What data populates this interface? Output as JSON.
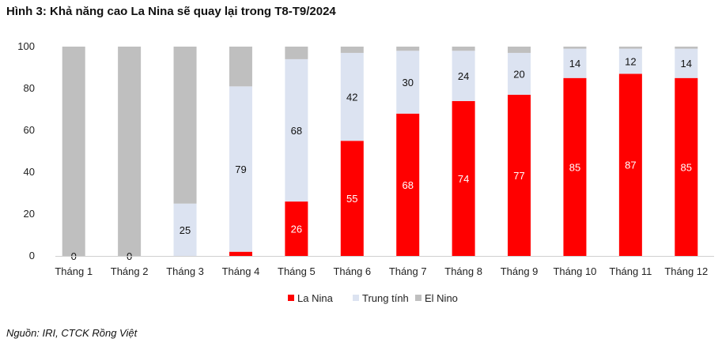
{
  "figure_title": "Hình 3: Khả năng cao La Nina sẽ quay lại trong T8-T9/2024",
  "source_note": "Nguồn: IRI, CTCK Rồng Việt",
  "chart_data": {
    "type": "bar",
    "stacked": true,
    "categories": [
      "Tháng 1",
      "Tháng 2",
      "Tháng 3",
      "Tháng 4",
      "Tháng 5",
      "Tháng 6",
      "Tháng 7",
      "Tháng 8",
      "Tháng 9",
      "Tháng 10",
      "Tháng 11",
      "Tháng 12"
    ],
    "series": [
      {
        "name": "La Nina",
        "color": "#ff0000",
        "values": [
          0,
          0,
          0,
          2,
          26,
          55,
          68,
          74,
          77,
          85,
          87,
          85
        ]
      },
      {
        "name": "Trung tính",
        "color": "#dce3f1",
        "values": [
          0,
          0,
          25,
          79,
          68,
          42,
          30,
          24,
          20,
          14,
          12,
          14
        ]
      },
      {
        "name": "El Nino",
        "color": "#bfbfbf",
        "values": [
          100,
          100,
          75,
          19,
          6,
          3,
          2,
          2,
          3,
          1,
          1,
          1
        ]
      }
    ],
    "data_labels": [
      {
        "text": "0",
        "series": "Trung tính",
        "category": "Tháng 1",
        "value": 0,
        "color": "#111111"
      },
      {
        "text": "0",
        "series": "Trung tính",
        "category": "Tháng 2",
        "value": 0,
        "color": "#111111"
      },
      {
        "text": "25",
        "series": "Trung tính",
        "category": "Tháng 3",
        "value": 25,
        "color": "#111111"
      },
      {
        "text": "79",
        "series": "Trung tính",
        "category": "Tháng 4",
        "value": 79,
        "color": "#111111"
      },
      {
        "text": "26",
        "series": "La Nina",
        "category": "Tháng 5",
        "value": 26,
        "color": "#ffffff"
      },
      {
        "text": "68",
        "series": "Trung tính",
        "category": "Tháng 5",
        "value": 68,
        "color": "#111111"
      },
      {
        "text": "55",
        "series": "La Nina",
        "category": "Tháng 6",
        "value": 55,
        "color": "#ffffff"
      },
      {
        "text": "42",
        "series": "Trung tính",
        "category": "Tháng 6",
        "value": 42,
        "color": "#111111"
      },
      {
        "text": "68",
        "series": "La Nina",
        "category": "Tháng 7",
        "value": 68,
        "color": "#ffffff"
      },
      {
        "text": "30",
        "series": "Trung tính",
        "category": "Tháng 7",
        "value": 30,
        "color": "#111111"
      },
      {
        "text": "74",
        "series": "La Nina",
        "category": "Tháng 8",
        "value": 74,
        "color": "#ffffff"
      },
      {
        "text": "24",
        "series": "Trung tính",
        "category": "Tháng 8",
        "value": 24,
        "color": "#111111"
      },
      {
        "text": "77",
        "series": "La Nina",
        "category": "Tháng 9",
        "value": 77,
        "color": "#ffffff"
      },
      {
        "text": "20",
        "series": "Trung tính",
        "category": "Tháng 9",
        "value": 20,
        "color": "#111111"
      },
      {
        "text": "85",
        "series": "La Nina",
        "category": "Tháng 10",
        "value": 85,
        "color": "#ffffff"
      },
      {
        "text": "14",
        "series": "Trung tính",
        "category": "Tháng 10",
        "value": 14,
        "color": "#111111"
      },
      {
        "text": "87",
        "series": "La Nina",
        "category": "Tháng 11",
        "value": 87,
        "color": "#ffffff"
      },
      {
        "text": "12",
        "series": "Trung tính",
        "category": "Tháng 11",
        "value": 12,
        "color": "#111111"
      },
      {
        "text": "85",
        "series": "La Nina",
        "category": "Tháng 12",
        "value": 85,
        "color": "#ffffff"
      },
      {
        "text": "14",
        "series": "Trung tính",
        "category": "Tháng 12",
        "value": 14,
        "color": "#111111"
      }
    ],
    "yticks": [
      0,
      20,
      40,
      60,
      80,
      100
    ],
    "ylim": [
      0,
      100
    ],
    "grid": false,
    "legend_position": "bottom"
  }
}
